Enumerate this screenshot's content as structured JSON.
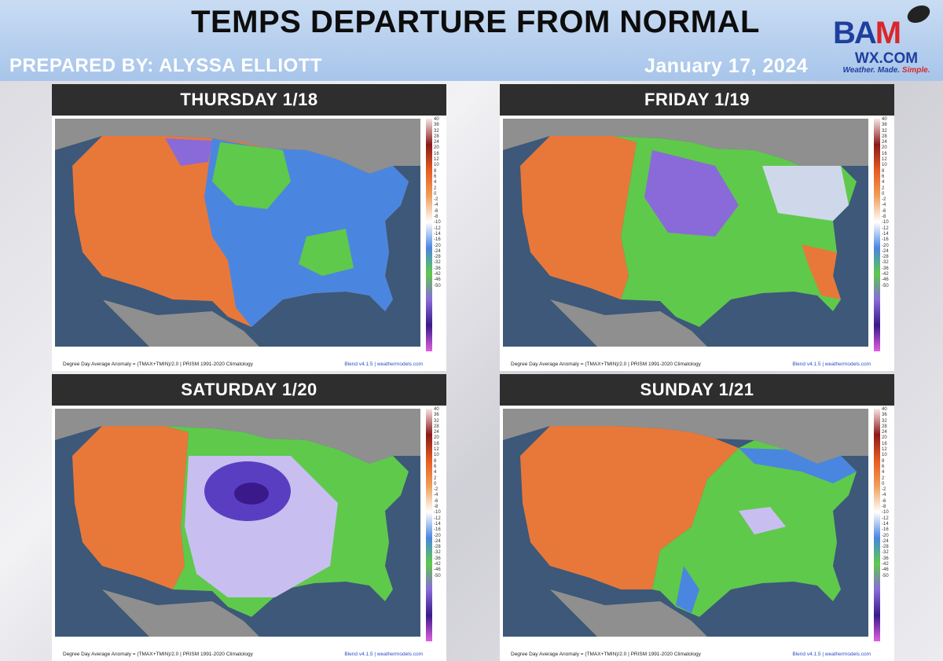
{
  "header": {
    "title": "TEMPS DEPARTURE FROM NORMAL",
    "prepared_by": "PREPARED BY: ALYSSA ELLIOTT",
    "date": "January 17, 2024"
  },
  "logo": {
    "main_a": "BA",
    "main_b": "M",
    "sub": "WX.COM",
    "tag_a": "Weather. Made. ",
    "tag_b": "Simple."
  },
  "colors": {
    "header_bg": "#a7c5ea",
    "panel_title_bg": "#2e2e2e",
    "ocean": "#3d5878",
    "land_outside": "#8f8f8f",
    "warm": "#e8783a",
    "cold_green": "#5fc94c",
    "cold_blue": "#4a86e0",
    "cold_purple": "#8a6ad8"
  },
  "legend": {
    "scale_labels": [
      "40",
      "36",
      "32",
      "28",
      "24",
      "20",
      "16",
      "12",
      "10",
      "8",
      "6",
      "4",
      "2",
      "0",
      "-2",
      "-4",
      "-6",
      "-8",
      "-10",
      "-12",
      "-14",
      "-16",
      "-20",
      "-24",
      "-28",
      "-32",
      "-36",
      "-42",
      "-46",
      "-50"
    ]
  },
  "footer": {
    "left": "Degree Day Average Anomaly = (TMAX+TMIN)/2.0 | PRISM 1991-2020 Climatology",
    "right": "Blend v4.1.5 | weathermodels.com"
  },
  "panels": [
    {
      "title": "THURSDAY 1/18"
    },
    {
      "title": "FRIDAY 1/19"
    },
    {
      "title": "SATURDAY 1/20"
    },
    {
      "title": "SUNDAY 1/21"
    }
  ]
}
